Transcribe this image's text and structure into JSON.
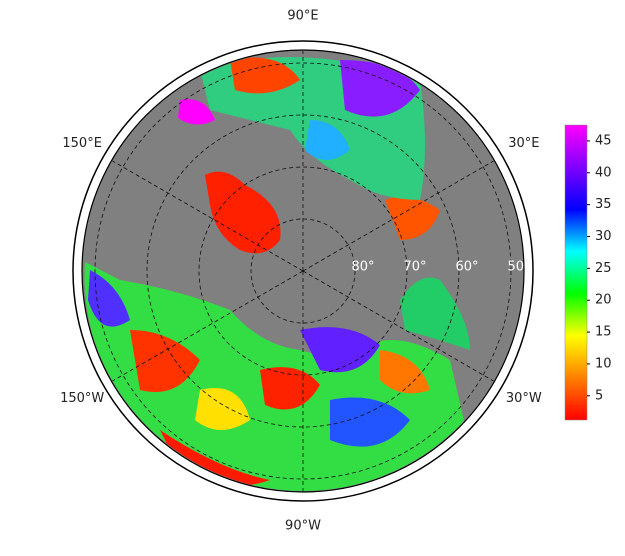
{
  "map": {
    "longitudes": [
      {
        "value": -90,
        "label": "90°W"
      },
      {
        "value": -30,
        "label": "30°W"
      },
      {
        "value": -150,
        "label": "150°W"
      },
      {
        "value": 30,
        "label": "30°E"
      },
      {
        "value": 150,
        "label": "150°E"
      },
      {
        "value": 90,
        "label": "90°E"
      }
    ],
    "latitudes": [
      {
        "value": 80,
        "label": "80°"
      },
      {
        "value": 70,
        "label": "70°"
      },
      {
        "value": 60,
        "label": "60°"
      },
      {
        "value": 50,
        "label": "50°"
      }
    ],
    "colorbar": {
      "lim": [
        1.2,
        47.5
      ],
      "ticks": [
        5,
        10,
        15,
        20,
        25,
        30,
        35,
        40,
        45
      ],
      "colormap": [
        "#ff0000",
        "#ff8000",
        "#ffff00",
        "#00ff00",
        "#00ffff",
        "#0000ff",
        "#8000ff",
        "#ff00ff"
      ]
    }
  }
}
